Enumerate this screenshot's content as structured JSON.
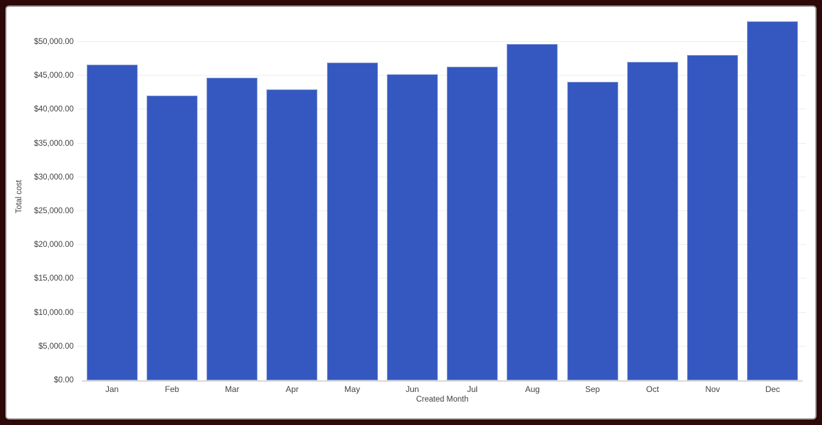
{
  "frame": {
    "border_color": "#2d0a09",
    "card_background": "#ffffff"
  },
  "chart_data": {
    "type": "bar",
    "xlabel": "Created Month",
    "ylabel": "Total cost",
    "categories": [
      "Jan",
      "Feb",
      "Mar",
      "Apr",
      "May",
      "Jun",
      "Jul",
      "Aug",
      "Sep",
      "Oct",
      "Nov",
      "Dec"
    ],
    "values": [
      46600,
      42100,
      44700,
      43000,
      46900,
      45200,
      46300,
      49700,
      44100,
      47000,
      48100,
      53000
    ],
    "series": [
      {
        "name": "Total cost",
        "values": [
          46600,
          42100,
          44700,
          43000,
          46900,
          45200,
          46300,
          49700,
          44100,
          47000,
          48100,
          53000
        ]
      }
    ],
    "bar_color": "#3558c0",
    "value_format": "$#,##0.00",
    "ylim": [
      0,
      53650
    ],
    "grid": true,
    "legend_position": "none",
    "y_ticks": [
      {
        "v": 0,
        "label": "$0.00"
      },
      {
        "v": 5000,
        "label": "$5,000.00"
      },
      {
        "v": 10000,
        "label": "$10,000.00"
      },
      {
        "v": 15000,
        "label": "$15,000.00"
      },
      {
        "v": 20000,
        "label": "$20,000.00"
      },
      {
        "v": 25000,
        "label": "$25,000.00"
      },
      {
        "v": 30000,
        "label": "$30,000.00"
      },
      {
        "v": 35000,
        "label": "$35,000.00"
      },
      {
        "v": 40000,
        "label": "$40,000.00"
      },
      {
        "v": 45000,
        "label": "$45,000.00"
      },
      {
        "v": 50000,
        "label": "$50,000.00"
      }
    ]
  }
}
